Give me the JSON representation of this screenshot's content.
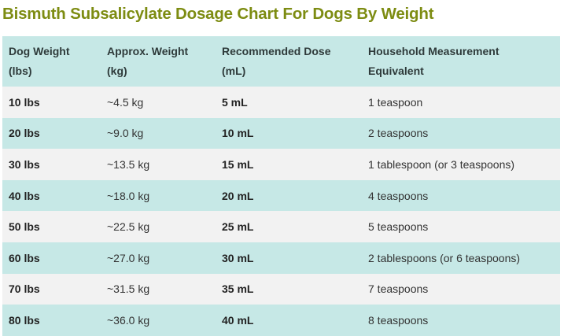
{
  "header": {
    "title": "Bismuth Subsalicylate Dosage Chart For Dogs By Weight"
  },
  "table": {
    "columns": [
      "Dog Weight\n(lbs)",
      "Approx. Weight\n(kg)",
      "Recommended Dose\n(mL)",
      "Household Measurement\nEquivalent"
    ],
    "rows": [
      [
        "10 lbs",
        "~4.5 kg",
        "5 mL",
        "1 teaspoon"
      ],
      [
        "20 lbs",
        "~9.0 kg",
        "10 mL",
        "2 teaspoons"
      ],
      [
        "30 lbs",
        "~13.5 kg",
        "15 mL",
        "1 tablespoon (or 3 teaspoons)"
      ],
      [
        "40 lbs",
        "~18.0 kg",
        "20 mL",
        "4 teaspoons"
      ],
      [
        "50 lbs",
        "~22.5 kg",
        "25 mL",
        "5 teaspoons"
      ],
      [
        "60 lbs",
        "~27.0 kg",
        "30 mL",
        "2 tablespoons (or 6 teaspoons)"
      ],
      [
        "70 lbs",
        "~31.5 kg",
        "35 mL",
        "7 teaspoons"
      ],
      [
        "80 lbs",
        "~36.0 kg",
        "40 mL",
        "8 teaspoons"
      ]
    ]
  }
}
